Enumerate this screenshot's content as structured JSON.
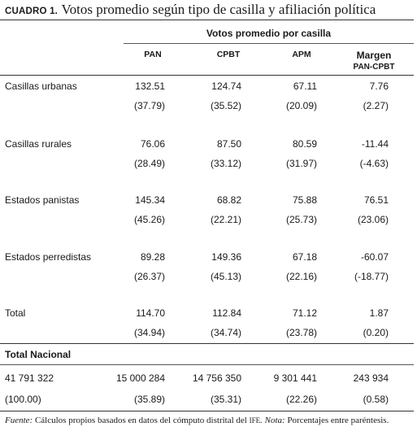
{
  "title": {
    "label": "CUADRO 1.",
    "text": "Votos promedio según tipo de casilla y afiliación política"
  },
  "table": {
    "group_header": "Votos promedio por casilla",
    "columns": [
      "PAN",
      "CPBT",
      "APM",
      "Margen",
      "PAN-CPBT"
    ],
    "rows": [
      {
        "label": "Casillas urbanas",
        "values": [
          "132.51",
          "124.74",
          "67.11",
          "7.76"
        ],
        "sub": [
          "(37.79)",
          "(35.52)",
          "(20.09)",
          "(2.27)"
        ]
      },
      {
        "label": "Casillas rurales",
        "values": [
          "76.06",
          "87.50",
          "80.59",
          "-11.44"
        ],
        "sub": [
          "(28.49)",
          "(33.12)",
          "(31.97)",
          "(-4.63)"
        ]
      },
      {
        "label": "Estados panistas",
        "values": [
          "145.34",
          "68.82",
          "75.88",
          "76.51"
        ],
        "sub": [
          "(45.26)",
          "(22.21)",
          "(25.73)",
          "(23.06)"
        ]
      },
      {
        "label": "Estados perredistas",
        "values": [
          "89.28",
          "149.36",
          "67.18",
          "-60.07"
        ],
        "sub": [
          "(26.37)",
          "(45.13)",
          "(22.16)",
          "(-18.77)"
        ]
      },
      {
        "label": "Total",
        "values": [
          "114.70",
          "112.84",
          "71.12",
          "1.87"
        ],
        "sub": [
          "(34.94)",
          "(34.74)",
          "(23.78)",
          "(0.20)"
        ]
      }
    ],
    "total_nacional": {
      "label": "Total Nacional",
      "values": [
        "41 791 322",
        "15 000 284",
        "14 756 350",
        "9 301 441",
        "243 934"
      ],
      "sub": [
        "(100.00)",
        "(35.89)",
        "(35.31)",
        "(22.26)",
        "(0.58)"
      ]
    }
  },
  "footer": {
    "fuente_label": "Fuente:",
    "fuente_text": " Cálculos propios basados en datos del cómputo distrital del ",
    "ife": "IFE",
    "nota_label": ". Nota:",
    "nota_text": " Porcentajes entre paréntesis."
  }
}
